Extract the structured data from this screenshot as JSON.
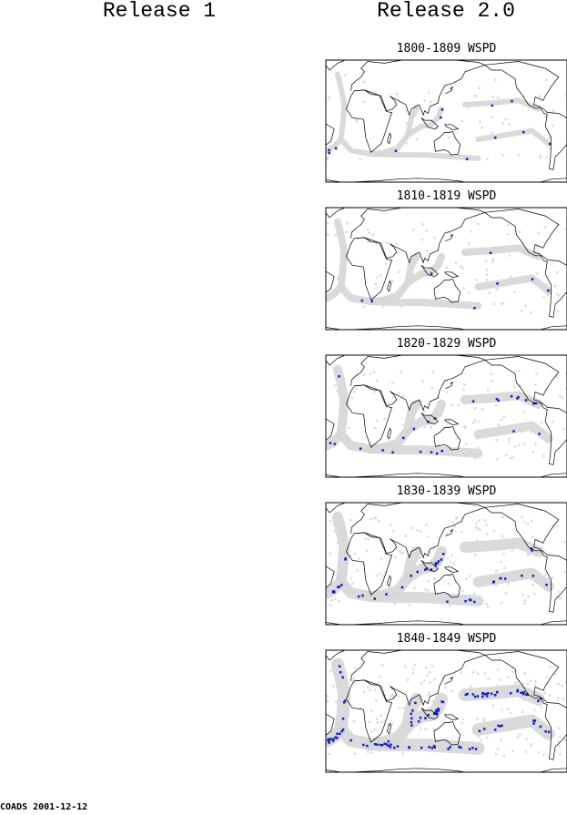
{
  "columns": [
    "Release 1",
    "Release 2.0"
  ],
  "panels": [
    {
      "title": "1800-1809 WSPD"
    },
    {
      "title": "1810-1819 WSPD"
    },
    {
      "title": "1820-1829 WSPD"
    },
    {
      "title": "1830-1839 WSPD"
    },
    {
      "title": "1840-1849 WSPD"
    }
  ],
  "footer": "COADS 2001-12-12"
}
